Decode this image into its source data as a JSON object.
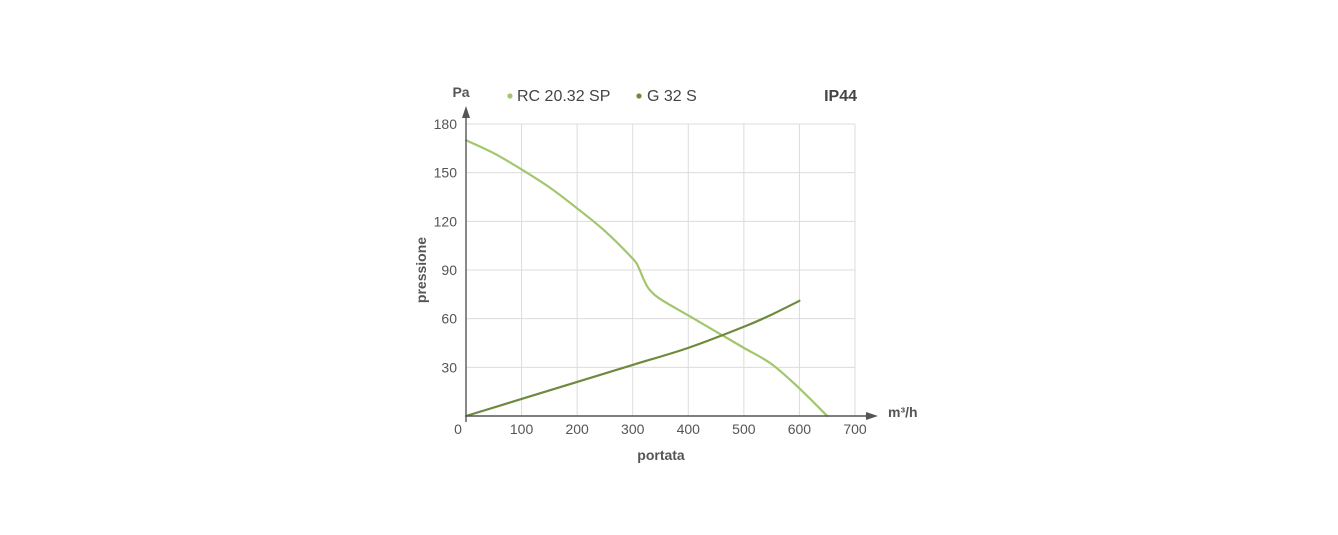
{
  "chart_data": {
    "type": "line",
    "xlabel": "portata",
    "ylabel": "pressione",
    "x_unit": "m³/h",
    "y_unit": "Pa",
    "badge": "IP44",
    "xlim": [
      0,
      700
    ],
    "ylim": [
      0,
      180
    ],
    "x_ticks": [
      0,
      100,
      200,
      300,
      400,
      500,
      600,
      700
    ],
    "y_ticks": [
      30,
      60,
      90,
      120,
      150,
      180
    ],
    "grid": true,
    "legend_position": "top",
    "series": [
      {
        "name": "RC 20.32 SP",
        "color": "#a3c66d",
        "x": [
          0,
          50,
          100,
          150,
          200,
          250,
          300,
          310,
          320,
          330,
          350,
          400,
          450,
          500,
          550,
          600,
          650
        ],
        "y": [
          170,
          162,
          152,
          141,
          128,
          114,
          97,
          92,
          84,
          78,
          72,
          62,
          52,
          42,
          32,
          17,
          0
        ]
      },
      {
        "name": "G 32 S",
        "color": "#6e8a3e",
        "x": [
          0,
          100,
          200,
          300,
          400,
          500,
          550,
          600
        ],
        "y": [
          0,
          10.5,
          21,
          31.5,
          42,
          55,
          62.5,
          71
        ]
      }
    ]
  }
}
